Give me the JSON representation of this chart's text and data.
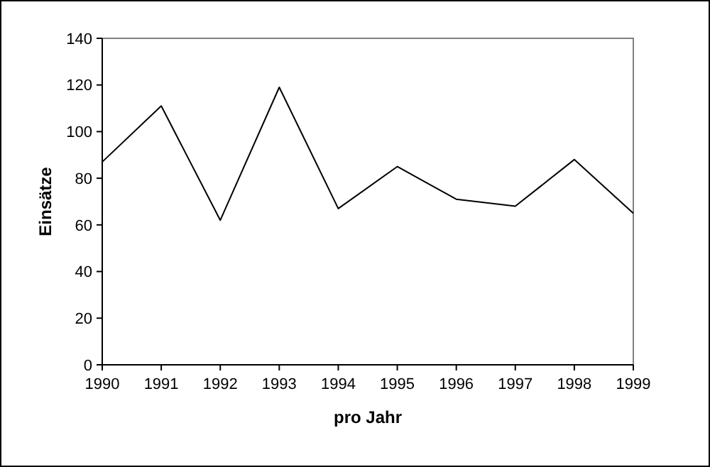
{
  "chart_data": {
    "type": "line",
    "xlabel": "pro Jahr",
    "ylabel": "Einsätze",
    "x": [
      1990,
      1991,
      1992,
      1993,
      1994,
      1995,
      1996,
      1997,
      1998,
      1999
    ],
    "series": [
      {
        "color": "#000000",
        "values": [
          87,
          111,
          62,
          119,
          67,
          85,
          71,
          68,
          88,
          65
        ]
      }
    ],
    "xlim": [
      1990,
      1999
    ],
    "xticks": [
      1990,
      1991,
      1992,
      1993,
      1994,
      1995,
      1996,
      1997,
      1998,
      1999
    ],
    "ylim": [
      0,
      140
    ],
    "yticks": [
      0,
      20,
      40,
      60,
      80,
      100,
      120,
      140
    ],
    "grid": false,
    "marker": "none",
    "line_style": "solid"
  }
}
